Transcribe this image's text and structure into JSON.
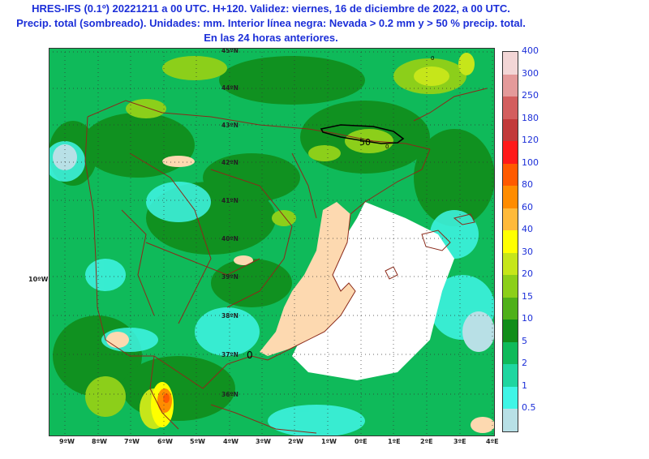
{
  "header": {
    "line1": "HRES-IFS (0.1º) 20221211 a 00 UTC. H+120. Validez: viernes, 16 de diciembre de 2022, a 00 UTC.",
    "line2": "Precip. total (sombreado). Unidades: mm. Interior línea negra: Nevada > 0.2 mm y > 50 % precip. total.",
    "line3": "En las 24 horas anteriores."
  },
  "map": {
    "lat_labels": [
      "45ºN",
      "44ºN",
      "43ºN",
      "42ºN",
      "41ºN",
      "40ºN",
      "39ºN",
      "38ºN",
      "37ºN",
      "36ºN"
    ],
    "lon_labels": [
      "9ºW",
      "8ºW",
      "7ºW",
      "6ºW",
      "5ºW",
      "4ºW",
      "3ºW",
      "2ºW",
      "1ºW",
      "0ºE",
      "1ºE",
      "2ºE",
      "3ºE",
      "4ºE"
    ],
    "side_label": "10ºW",
    "snow_contour_labels": [
      "50",
      "0",
      "0",
      "0"
    ],
    "colors": {
      "land_boundary": "#8b2a1a",
      "snow_contour": "#000000",
      "title": "#1c2fd8"
    }
  },
  "legend": {
    "levels": [
      "400",
      "300",
      "250",
      "180",
      "120",
      "100",
      "80",
      "60",
      "40",
      "30",
      "20",
      "15",
      "10",
      "5",
      "2",
      "1",
      "0.5"
    ],
    "colors": [
      "#f3d6d6",
      "#e49a9a",
      "#d35e5e",
      "#c23a3a",
      "#ff1a1a",
      "#ff5a00",
      "#ff8c00",
      "#ffba3a",
      "#ffff00",
      "#c6e61a",
      "#8ccf1a",
      "#4fb01a",
      "#118d1a",
      "#0fba5a",
      "#1fd6a0",
      "#3ff5e6",
      "#b8e0e6"
    ]
  }
}
